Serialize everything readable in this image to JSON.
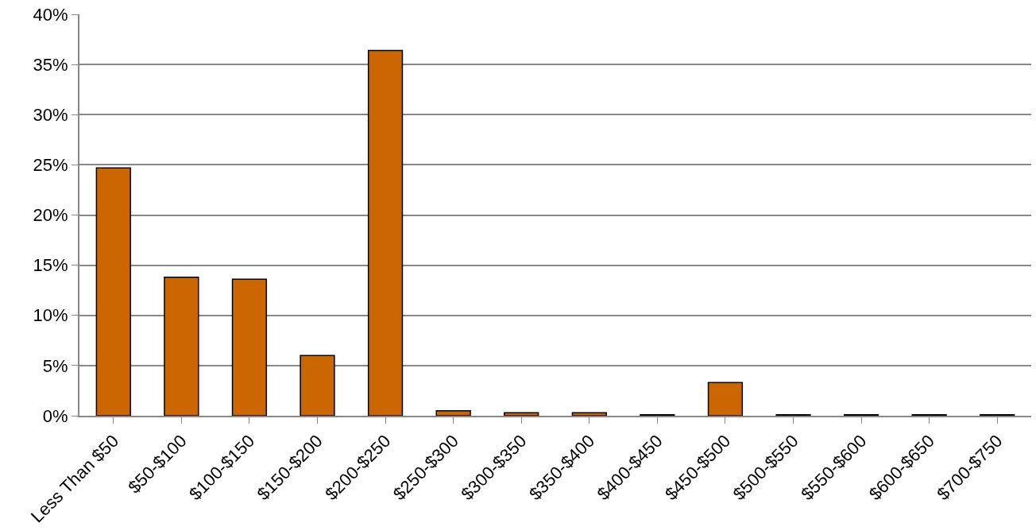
{
  "chart_data": {
    "type": "bar",
    "categories": [
      "Less Than $50",
      "$50-$100",
      "$100-$150",
      "$150-$200",
      "$200-$250",
      "$250-$300",
      "$300-$350",
      "$350-$400",
      "$400-$450",
      "$450-$500",
      "$500-$550",
      "$550-$600",
      "$600-$650",
      "$700-$750"
    ],
    "values": [
      24.7,
      13.8,
      13.6,
      6.0,
      36.4,
      0.5,
      0.3,
      0.3,
      0.1,
      3.3,
      0.1,
      0.1,
      0.1,
      0.1
    ],
    "color": "#cc6600",
    "ylim": [
      0,
      40
    ],
    "yticks": [
      {
        "value": 0,
        "label": "0%"
      },
      {
        "value": 5,
        "label": "5%"
      },
      {
        "value": 10,
        "label": "10%"
      },
      {
        "value": 15,
        "label": "15%"
      },
      {
        "value": 20,
        "label": "20%"
      },
      {
        "value": 25,
        "label": "25%"
      },
      {
        "value": 30,
        "label": "30%"
      },
      {
        "value": 35,
        "label": "35%"
      },
      {
        "value": 40,
        "label": "40%"
      }
    ],
    "grid": "y"
  }
}
